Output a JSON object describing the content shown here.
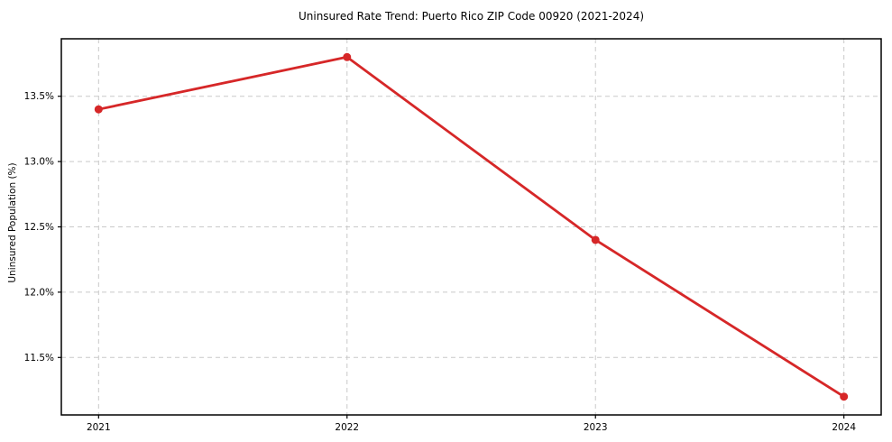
{
  "chart_data": {
    "type": "line",
    "title": "Uninsured Rate Trend: Puerto Rico ZIP Code 00920 (2021-2024)",
    "xlabel": "",
    "ylabel": "Uninsured Population (%)",
    "x": [
      2021,
      2022,
      2023,
      2024
    ],
    "series": [
      {
        "name": "Uninsured Population (%)",
        "values": [
          13.4,
          13.8,
          12.4,
          11.2
        ]
      }
    ],
    "x_ticks": [
      2021,
      2022,
      2023,
      2024
    ],
    "x_tick_labels": [
      "2021",
      "2022",
      "2023",
      "2024"
    ],
    "y_ticks": [
      11.5,
      12.0,
      12.5,
      13.0,
      13.5
    ],
    "y_tick_labels": [
      "11.5%",
      "12.0%",
      "12.5%",
      "13.0%",
      "13.5%"
    ],
    "xlim": [
      2020.85,
      2024.15
    ],
    "ylim": [
      11.06,
      13.94
    ],
    "grid": true,
    "grid_style": "dashed",
    "legend_position": "none",
    "line_color": "#d62728",
    "marker": "circle",
    "marker_size": 4.5,
    "line_width": 2.8,
    "grid_color": "#c9c9c9",
    "spine_color": "#000000",
    "text_color": "#000000",
    "background_color": "#ffffff"
  }
}
